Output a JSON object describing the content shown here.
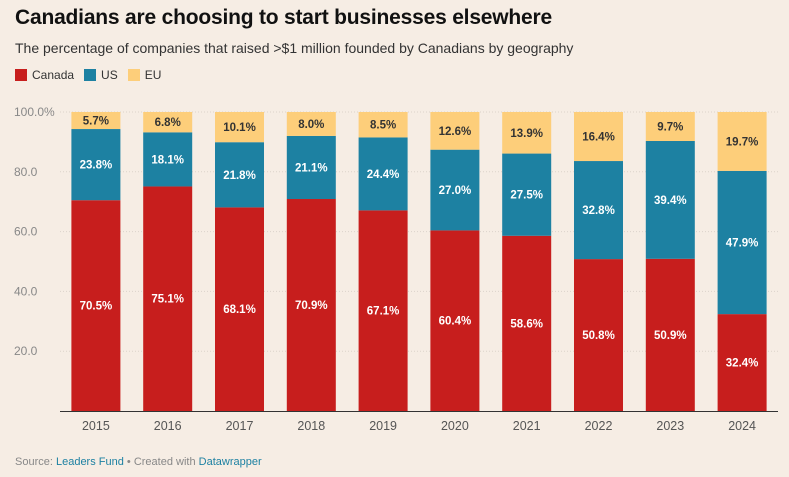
{
  "title": "Canadians are choosing to start businesses elsewhere",
  "subtitle": "The percentage of companies that raised >$1 million founded by Canadians by geography",
  "legend": [
    {
      "label": "Canada",
      "color": "#c71e1d"
    },
    {
      "label": "US",
      "color": "#1d81a2"
    },
    {
      "label": "EU",
      "color": "#fdce7a"
    }
  ],
  "footer": {
    "source_prefix": "Source: ",
    "source_name": "Leaders Fund",
    "separator": " • Created with ",
    "tool_name": "Datawrapper"
  },
  "chart_data": {
    "type": "bar",
    "stacked": true,
    "title": "Canadians are choosing to start businesses elsewhere",
    "xlabel": "",
    "ylabel": "",
    "ylim": [
      0,
      100
    ],
    "yticks": [
      "20.0",
      "40.0",
      "60.0",
      "80.0",
      "100.0%"
    ],
    "ytick_values": [
      20,
      40,
      60,
      80,
      100
    ],
    "categories": [
      "2015",
      "2016",
      "2017",
      "2018",
      "2019",
      "2020",
      "2021",
      "2022",
      "2023",
      "2024"
    ],
    "series": [
      {
        "name": "Canada",
        "color": "#c71e1d",
        "values": [
          70.5,
          75.1,
          68.1,
          70.9,
          67.1,
          60.4,
          58.6,
          50.8,
          50.9,
          32.4
        ],
        "labels": [
          "70.5%",
          "75.1%",
          "68.1%",
          "70.9%",
          "67.1%",
          "60.4%",
          "58.6%",
          "50.8%",
          "50.9%",
          "32.4%"
        ]
      },
      {
        "name": "US",
        "color": "#1d81a2",
        "values": [
          23.8,
          18.1,
          21.8,
          21.1,
          24.4,
          27.0,
          27.5,
          32.8,
          39.4,
          47.9
        ],
        "labels": [
          "23.8%",
          "18.1%",
          "21.8%",
          "21.1%",
          "24.4%",
          "27.0%",
          "27.5%",
          "32.8%",
          "39.4%",
          "47.9%"
        ]
      },
      {
        "name": "EU",
        "color": "#fdce7a",
        "values": [
          5.7,
          6.8,
          10.1,
          8.0,
          8.5,
          12.6,
          13.9,
          16.4,
          9.7,
          19.7
        ],
        "labels": [
          "5.7%",
          "6.8%",
          "10.1%",
          "8.0%",
          "8.5%",
          "12.6%",
          "13.9%",
          "16.4%",
          "9.7%",
          "19.7%"
        ]
      }
    ]
  }
}
